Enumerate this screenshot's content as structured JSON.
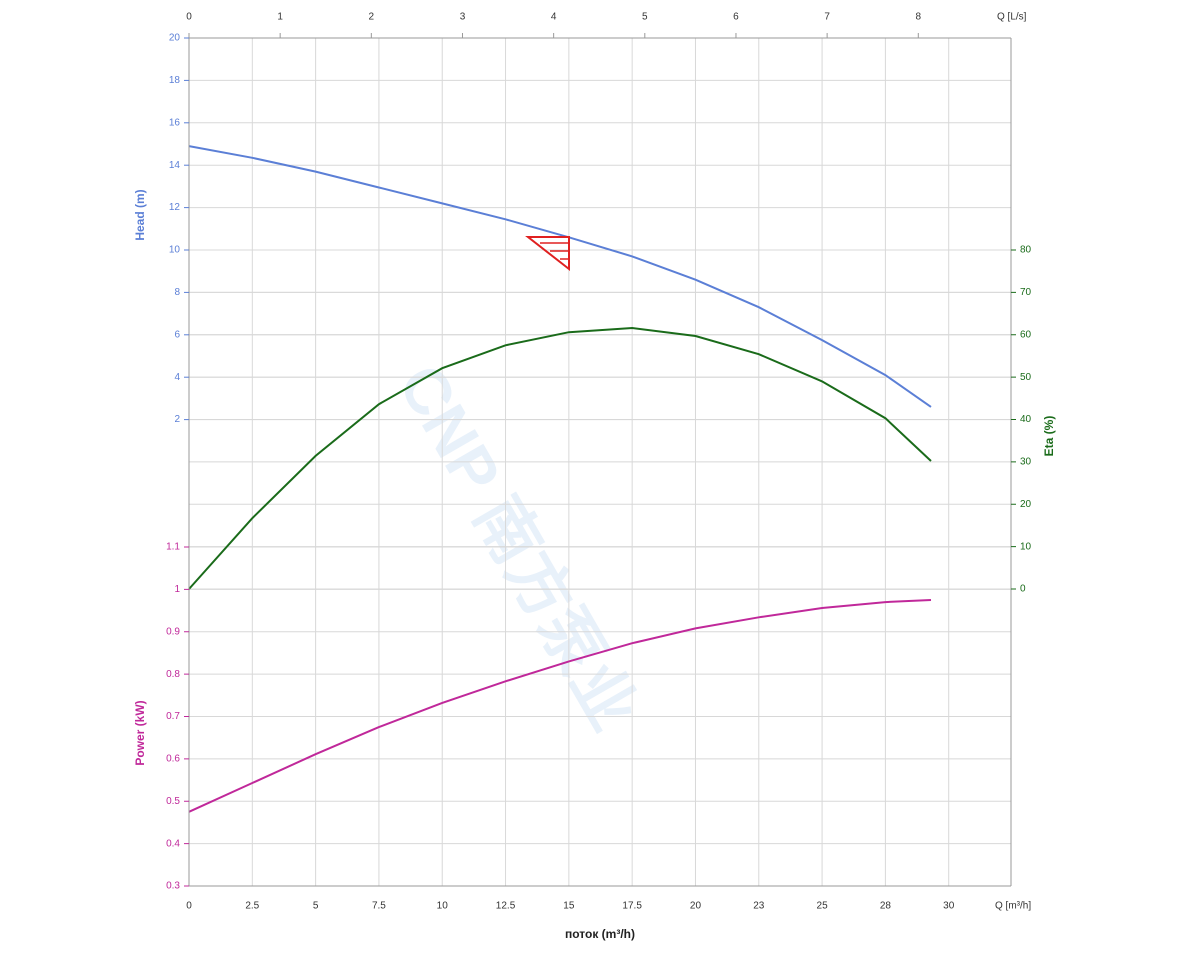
{
  "chart_data": {
    "type": "line",
    "xlabel": "поток (m³/h)",
    "xunit_label": "Q [m³/h]",
    "xlim": [
      0,
      32.46
    ],
    "xticks": [
      0,
      2.5,
      5,
      7.5,
      10,
      12.5,
      15,
      17.5,
      20,
      {
        "value": 22.5,
        "label": "23"
      },
      25,
      {
        "value": 27.5,
        "label": "28"
      },
      30
    ],
    "x2label": "Q [L/s]",
    "x2lim": [
      0,
      9.017
    ],
    "x2ticks": [
      0,
      1,
      2,
      3,
      4,
      5,
      6,
      7,
      8
    ],
    "ylabel": "Head (m)",
    "ylim": [
      0,
      20
    ],
    "yticks": [
      2,
      4,
      6,
      8,
      10,
      12,
      14,
      16,
      18,
      20
    ],
    "y2label": "Eta (%)",
    "y2lim": [
      0,
      80
    ],
    "y2ticks": [
      0,
      10,
      20,
      30,
      40,
      50,
      60,
      70,
      80
    ],
    "y3label": "Power (kW)",
    "y3lim": [
      0.3,
      1.1
    ],
    "y3ticks": [
      0.3,
      0.4,
      0.5,
      0.6,
      0.7,
      0.8,
      0.9,
      1,
      1.1
    ],
    "grid": true,
    "watermark": "CNP 南方泵业",
    "x": [
      0,
      2.5,
      5,
      7.5,
      10,
      12.5,
      15,
      17.5,
      20,
      22.5,
      25,
      27.5,
      29.3
    ],
    "series": [
      {
        "axis": "y",
        "color": "#5b7fd6",
        "values": [
          14.9,
          14.35,
          13.7,
          12.95,
          12.2,
          11.45,
          10.6,
          9.7,
          8.6,
          7.3,
          5.75,
          4.1,
          2.6
        ]
      },
      {
        "axis": "y2",
        "color": "#1a6b1a",
        "values": [
          0,
          16.7,
          31.4,
          43.6,
          52.1,
          57.5,
          60.6,
          61.6,
          59.7,
          55.4,
          49,
          40.3,
          30.2
        ]
      },
      {
        "axis": "y3",
        "color": "#c0289a",
        "values": [
          0.475,
          0.543,
          0.611,
          0.675,
          0.732,
          0.783,
          0.83,
          0.873,
          0.908,
          0.934,
          0.956,
          0.97,
          0.975
        ]
      }
    ]
  }
}
